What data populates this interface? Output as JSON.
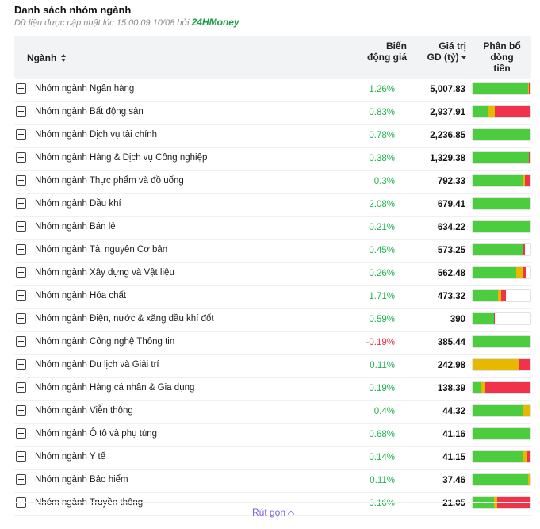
{
  "header": {
    "title": "Danh sách nhóm ngành",
    "subtitle": "Dữ liệu được cập nhật lúc 15:00:09 10/08 bởi",
    "brand": "24HMoney"
  },
  "columns": {
    "name": "Ngành",
    "change": [
      "Biến",
      "động giá"
    ],
    "value": [
      "Giá trị",
      "GD (tỷ)"
    ],
    "flow": [
      "Phân bổ",
      "dòng",
      "tiền"
    ]
  },
  "colors": {
    "up": "#4ccd3e",
    "flat": "#e6b800",
    "down": "#f0324b",
    "accent": "#7b5de0"
  },
  "rows": [
    {
      "name": "Nhóm ngành Ngân hàng",
      "change": "1.26%",
      "value": "5,007.83",
      "flow": [
        0.96,
        0.01,
        0.03
      ]
    },
    {
      "name": "Nhóm ngành Bất động sản",
      "change": "0.83%",
      "value": "2,937.91",
      "flow": [
        0.28,
        0.1,
        0.62
      ]
    },
    {
      "name": "Nhóm ngành Dịch vụ tài chính",
      "change": "0.78%",
      "value": "2,236.85",
      "flow": [
        0.98,
        0.0,
        0.02
      ]
    },
    {
      "name": "Nhóm ngành Hàng & Dịch vụ Công nghiệp",
      "change": "0.38%",
      "value": "1,329.38",
      "flow": [
        0.97,
        0.0,
        0.03
      ]
    },
    {
      "name": "Nhóm ngành Thực phẩm và đồ uống",
      "change": "0.3%",
      "value": "792.33",
      "flow": [
        0.88,
        0.03,
        0.09
      ]
    },
    {
      "name": "Nhóm ngành Dầu khí",
      "change": "2.08%",
      "value": "679.41",
      "flow": [
        1.0,
        0.0,
        0.0
      ]
    },
    {
      "name": "Nhóm ngành Bán lẻ",
      "change": "0.21%",
      "value": "634.22",
      "flow": [
        1.0,
        0.0,
        0.0
      ]
    },
    {
      "name": "Nhóm ngành Tài nguyên Cơ bản",
      "change": "0.45%",
      "value": "573.25",
      "flow": [
        0.88,
        0.0,
        0.03
      ]
    },
    {
      "name": "Nhóm ngành Xây dựng và Vật liệu",
      "change": "0.26%",
      "value": "562.48",
      "flow": [
        0.76,
        0.12,
        0.04
      ]
    },
    {
      "name": "Nhóm ngành Hóa chất",
      "change": "1.71%",
      "value": "473.32",
      "flow": [
        0.44,
        0.05,
        0.09
      ]
    },
    {
      "name": "Nhóm ngành Điện, nước & xăng dầu khí đốt",
      "change": "0.59%",
      "value": "390",
      "flow": [
        0.37,
        0.0,
        0.02
      ]
    },
    {
      "name": "Nhóm ngành Công nghệ Thông tin",
      "change": "-0.19%",
      "value": "385.44",
      "flow": [
        0.98,
        0.0,
        0.02
      ]
    },
    {
      "name": "Nhóm ngành Du lịch và Giải trí",
      "change": "0.11%",
      "value": "242.98",
      "flow": [
        0.02,
        0.79,
        0.19
      ]
    },
    {
      "name": "Nhóm ngành Hàng cá nhân & Gia dụng",
      "change": "0.19%",
      "value": "138.39",
      "flow": [
        0.15,
        0.07,
        0.78
      ]
    },
    {
      "name": "Nhóm ngành Viễn thông",
      "change": "0.4%",
      "value": "44.32",
      "flow": [
        0.88,
        0.12,
        0.0
      ]
    },
    {
      "name": "Nhóm ngành Ô tô và phụ tùng",
      "change": "0.68%",
      "value": "41.16",
      "flow": [
        0.98,
        0.0,
        0.02
      ]
    },
    {
      "name": "Nhóm ngành Y tế",
      "change": "0.14%",
      "value": "41.15",
      "flow": [
        0.87,
        0.08,
        0.05
      ]
    },
    {
      "name": "Nhóm ngành Bảo hiểm",
      "change": "0.11%",
      "value": "37.46",
      "flow": [
        0.96,
        0.02,
        0.02
      ]
    },
    {
      "name": "Nhóm ngành Truyền thông",
      "change": "0.16%",
      "value": "21.05",
      "flow": [
        0.37,
        0.05,
        0.58
      ]
    }
  ],
  "footer": {
    "collapse_label": "Rút gọn"
  }
}
